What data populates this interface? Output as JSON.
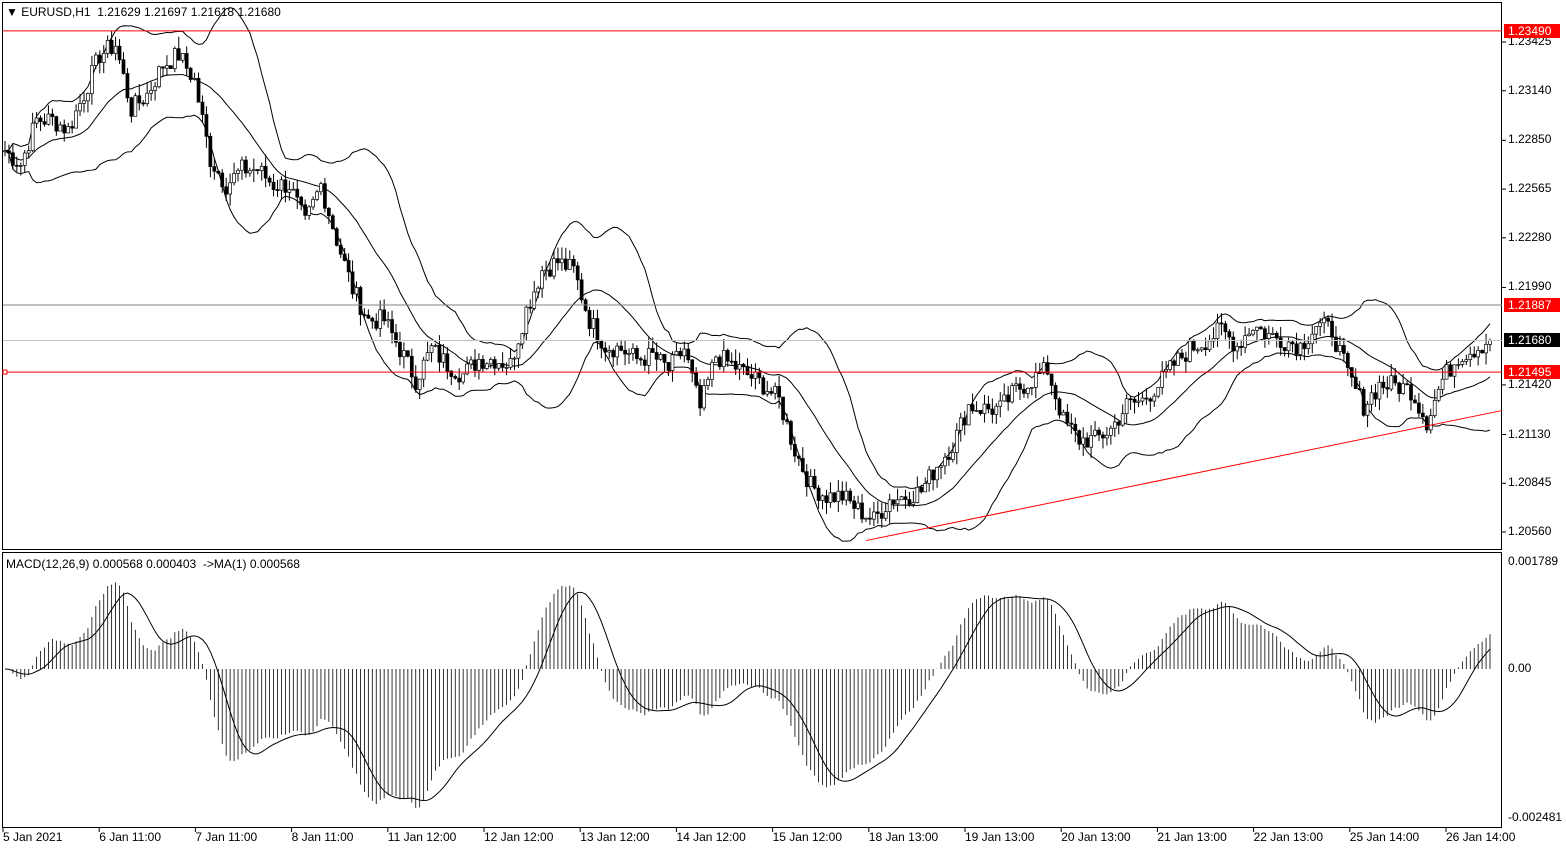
{
  "header": {
    "symbol": "EURUSD,H1",
    "open": "1.21629",
    "high": "1.21697",
    "low": "1.21618",
    "close": "1.21680"
  },
  "macd_label": {
    "name": "MACD(12,26,9)",
    "main": "0.000568",
    "signal": "0.000403",
    "ma": "->MA(1) 0.000568"
  },
  "colors": {
    "background": "#ffffff",
    "candle": "#000000",
    "level": "#ff0000",
    "bid_line": "#c0c0c0",
    "tag_black": "#000000"
  },
  "chart_data": [
    {
      "type": "candlestick",
      "symbol": "EURUSD",
      "timeframe": "H1",
      "ylim": [
        1.2056,
        1.2349
      ],
      "y_ticks": [
        "1.23425",
        "1.23140",
        "1.22850",
        "1.22565",
        "1.22280",
        "1.21990",
        "1.21420",
        "1.21130",
        "1.20845",
        "1.20560"
      ],
      "x_ticks": [
        "5 Jan 2021",
        "6 Jan 11:00",
        "7 Jan 11:00",
        "8 Jan 11:00",
        "11 Jan 12:00",
        "12 Jan 12:00",
        "13 Jan 12:00",
        "14 Jan 12:00",
        "15 Jan 12:00",
        "18 Jan 13:00",
        "19 Jan 13:00",
        "20 Jan 13:00",
        "21 Jan 13:00",
        "22 Jan 13:00",
        "25 Jan 14:00",
        "26 Jan 14:00"
      ],
      "closes_approx": [
        1.2279,
        1.2271,
        1.2297,
        1.2297,
        1.2291,
        1.2312,
        1.2335,
        1.2341,
        1.2303,
        1.2312,
        1.2329,
        1.2335,
        1.232,
        1.2274,
        1.2259,
        1.2268,
        1.2268,
        1.2259,
        1.2259,
        1.2236,
        1.2259,
        1.2227,
        1.2198,
        1.218,
        1.218,
        1.2163,
        1.2145,
        1.2163,
        1.2154,
        1.2148,
        1.2157,
        1.2157,
        1.2154,
        1.2186,
        1.2209,
        1.2214,
        1.2209,
        1.218,
        1.2165,
        1.2163,
        1.2157,
        1.2159,
        1.2151,
        1.2163,
        1.2128,
        1.2159,
        1.2154,
        1.2148,
        1.2142,
        1.2133,
        1.2104,
        1.2083,
        1.2077,
        1.2077,
        1.2069,
        1.2063,
        1.2075,
        1.2077,
        1.208,
        1.2095,
        1.2107,
        1.213,
        1.2128,
        1.2128,
        1.2139,
        1.2145,
        1.2151,
        1.2121,
        1.211,
        1.211,
        1.2116,
        1.213,
        1.2133,
        1.2142,
        1.2154,
        1.2163,
        1.2168,
        1.2174,
        1.2165,
        1.2177,
        1.2171,
        1.2168,
        1.2165,
        1.2177,
        1.2174,
        1.2148,
        1.213,
        1.2142,
        1.2142,
        1.2139,
        1.2121,
        1.2145,
        1.2159,
        1.2163,
        1.2168
      ],
      "indicators": [
        "Bollinger Bands(20,2)"
      ],
      "levels": [
        {
          "price": "1.23490",
          "color": "#ff0000",
          "line": "#ff0000"
        },
        {
          "price": "1.21887",
          "color": "#ff0000",
          "line": "#808080"
        },
        {
          "price": "1.21680",
          "color": "#000000",
          "line": "#c0c0c0"
        },
        {
          "price": "1.21495",
          "color": "#ff0000",
          "line": "#ff0000"
        }
      ],
      "trendline": {
        "start_price": 1.2051,
        "end_price": 1.2127,
        "color": "#ff0000"
      }
    },
    {
      "type": "bar+line",
      "name": "MACD(12,26,9)",
      "ylim": [
        -0.002481,
        0.001789
      ],
      "y_ticks": [
        "0.001789",
        "0.00",
        "-0.002481"
      ]
    }
  ]
}
